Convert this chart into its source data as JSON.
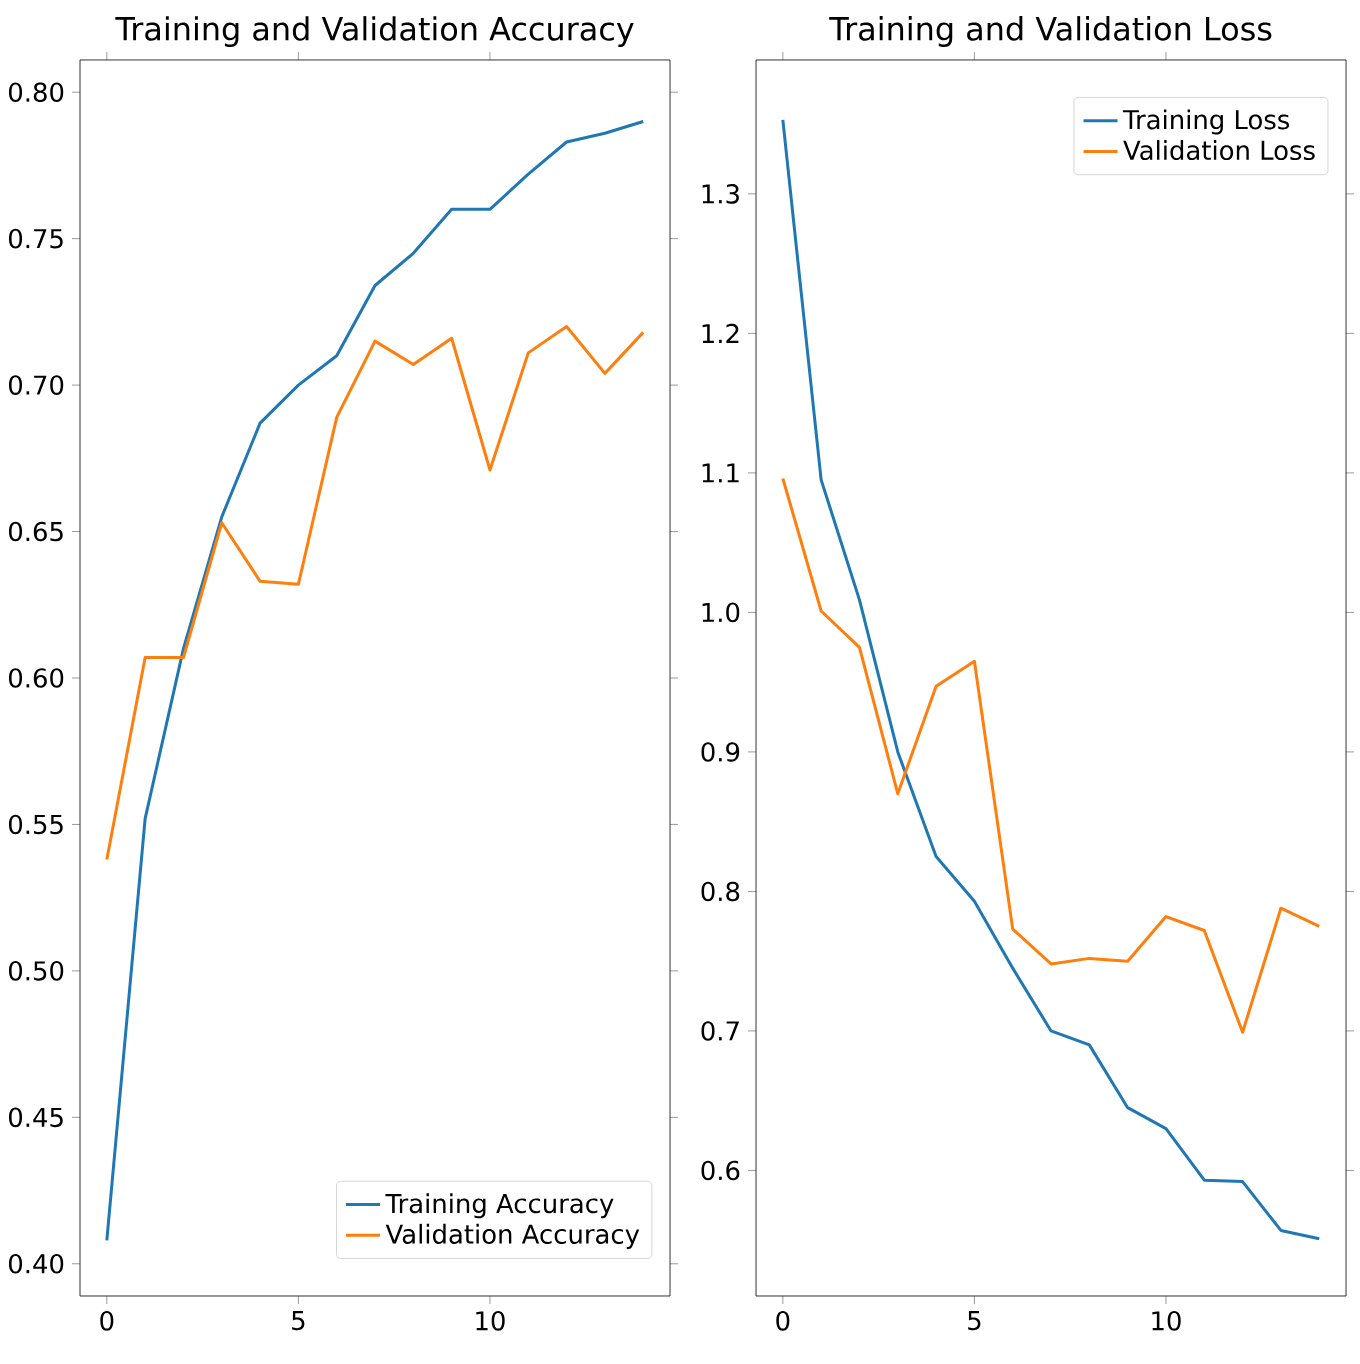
{
  "chart_data": [
    {
      "type": "line",
      "title": "Training and Validation Accuracy",
      "x": [
        0,
        1,
        2,
        3,
        4,
        5,
        6,
        7,
        8,
        9,
        10,
        11,
        12,
        13,
        14
      ],
      "series": [
        {
          "name": "Training Accuracy",
          "color": "#1f77b4",
          "values": [
            0.408,
            0.552,
            0.61,
            0.655,
            0.687,
            0.7,
            0.71,
            0.734,
            0.745,
            0.76,
            0.76,
            0.772,
            0.783,
            0.786,
            0.79
          ]
        },
        {
          "name": "Validation Accuracy",
          "color": "#ff7f0e",
          "values": [
            0.538,
            0.607,
            0.607,
            0.653,
            0.633,
            0.632,
            0.689,
            0.715,
            0.707,
            0.716,
            0.671,
            0.711,
            0.72,
            0.704,
            0.718
          ]
        }
      ],
      "xlim": [
        -0.7,
        14.7
      ],
      "ylim": [
        0.389,
        0.811
      ],
      "xticks": [
        0,
        5,
        10
      ],
      "yticks": [
        {
          "value": 0.4,
          "label": "0.40"
        },
        {
          "value": 0.45,
          "label": "0.45"
        },
        {
          "value": 0.5,
          "label": "0.50"
        },
        {
          "value": 0.55,
          "label": "0.55"
        },
        {
          "value": 0.6,
          "label": "0.60"
        },
        {
          "value": 0.65,
          "label": "0.65"
        },
        {
          "value": 0.7,
          "label": "0.70"
        },
        {
          "value": 0.75,
          "label": "0.75"
        },
        {
          "value": 0.8,
          "label": "0.80"
        }
      ],
      "legend": "bottom right",
      "line_style": "solid"
    },
    {
      "type": "line",
      "title": "Training and Validation Loss",
      "x": [
        0,
        1,
        2,
        3,
        4,
        5,
        6,
        7,
        8,
        9,
        10,
        11,
        12,
        13,
        14
      ],
      "series": [
        {
          "name": "Training Loss",
          "color": "#1f77b4",
          "values": [
            1.353,
            1.095,
            1.009,
            0.9,
            0.825,
            0.793,
            0.745,
            0.7,
            0.69,
            0.645,
            0.63,
            0.593,
            0.592,
            0.557,
            0.551
          ]
        },
        {
          "name": "Validation Loss",
          "color": "#ff7f0e",
          "values": [
            1.096,
            1.001,
            0.975,
            0.87,
            0.947,
            0.965,
            0.773,
            0.748,
            0.752,
            0.75,
            0.782,
            0.772,
            0.699,
            0.788,
            0.775
          ]
        }
      ],
      "xlim": [
        -0.7,
        14.7
      ],
      "ylim": [
        0.51,
        1.396
      ],
      "xticks": [
        0,
        5,
        10
      ],
      "yticks": [
        {
          "value": 0.6,
          "label": "0.6"
        },
        {
          "value": 0.7,
          "label": "0.7"
        },
        {
          "value": 0.8,
          "label": "0.8"
        },
        {
          "value": 0.9,
          "label": "0.9"
        },
        {
          "value": 1.0,
          "label": "1.0"
        },
        {
          "value": 1.1,
          "label": "1.1"
        },
        {
          "value": 1.2,
          "label": "1.2"
        },
        {
          "value": 1.3,
          "label": "1.3"
        }
      ],
      "legend": "top right",
      "line_style": "solid"
    }
  ]
}
